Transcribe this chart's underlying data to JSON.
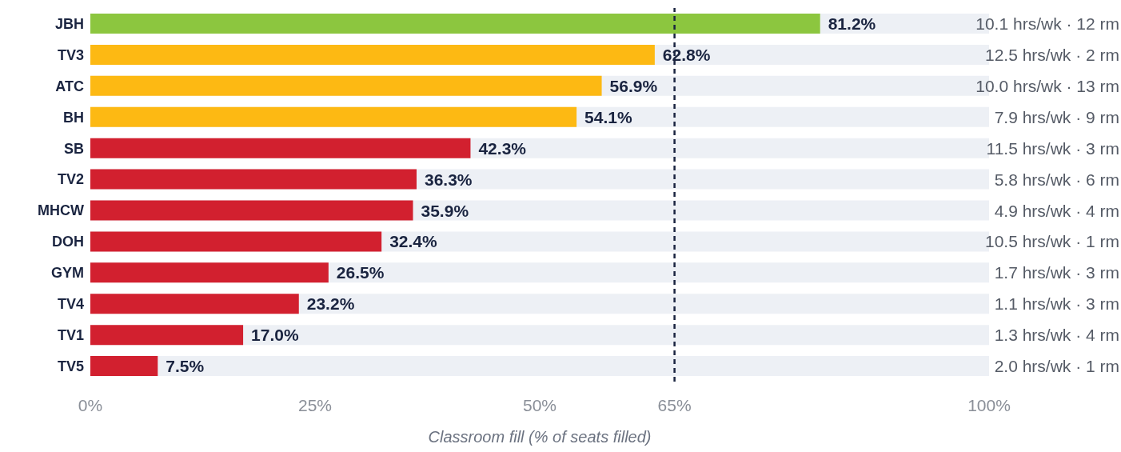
{
  "chart_data": {
    "type": "bar",
    "orientation": "horizontal",
    "xlabel": "Classroom fill (% of seats filled)",
    "categories": [
      "JBH",
      "TV3",
      "ATC",
      "BH",
      "SB",
      "TV2",
      "MHCW",
      "DOH",
      "GYM",
      "TV4",
      "TV1",
      "TV5"
    ],
    "values": [
      81.2,
      62.8,
      56.9,
      54.1,
      42.3,
      36.3,
      35.9,
      32.4,
      26.5,
      23.2,
      17.0,
      7.5
    ],
    "colors": [
      "#8cc63f",
      "#fdb913",
      "#fdb913",
      "#fdb913",
      "#d2202f",
      "#d2202f",
      "#d2202f",
      "#d2202f",
      "#d2202f",
      "#d2202f",
      "#d2202f",
      "#d2202f"
    ],
    "value_labels": [
      "81.2%",
      "62.8%",
      "56.9%",
      "54.1%",
      "42.3%",
      "36.3%",
      "35.9%",
      "32.4%",
      "26.5%",
      "23.2%",
      "17.0%",
      "7.5%"
    ],
    "xlim": [
      0,
      100
    ],
    "xticks": [
      {
        "value": 0,
        "label": "0%"
      },
      {
        "value": 25,
        "label": "25%"
      },
      {
        "value": 50,
        "label": "50%"
      },
      {
        "value": 65,
        "label": "65%"
      },
      {
        "value": 100,
        "label": "100%"
      }
    ],
    "ref_lines": [
      {
        "axis": "x",
        "value": 65,
        "label": null,
        "color": "#1a2440",
        "line_style": "dashed"
      }
    ],
    "annotations": [
      "10.1 hrs/wk · 12 rm",
      "12.5 hrs/wk · 2 rm",
      "10.0 hrs/wk · 13 rm",
      "7.9 hrs/wk · 9 rm",
      "11.5 hrs/wk · 3 rm",
      "5.8 hrs/wk · 6 rm",
      "4.9 hrs/wk · 4 rm",
      "10.5 hrs/wk · 1 rm",
      "1.7 hrs/wk · 3 rm",
      "1.1 hrs/wk · 3 rm",
      "1.3 hrs/wk · 4 rm",
      "2.0 hrs/wk · 1 rm"
    ],
    "grid": false,
    "legend": false
  }
}
